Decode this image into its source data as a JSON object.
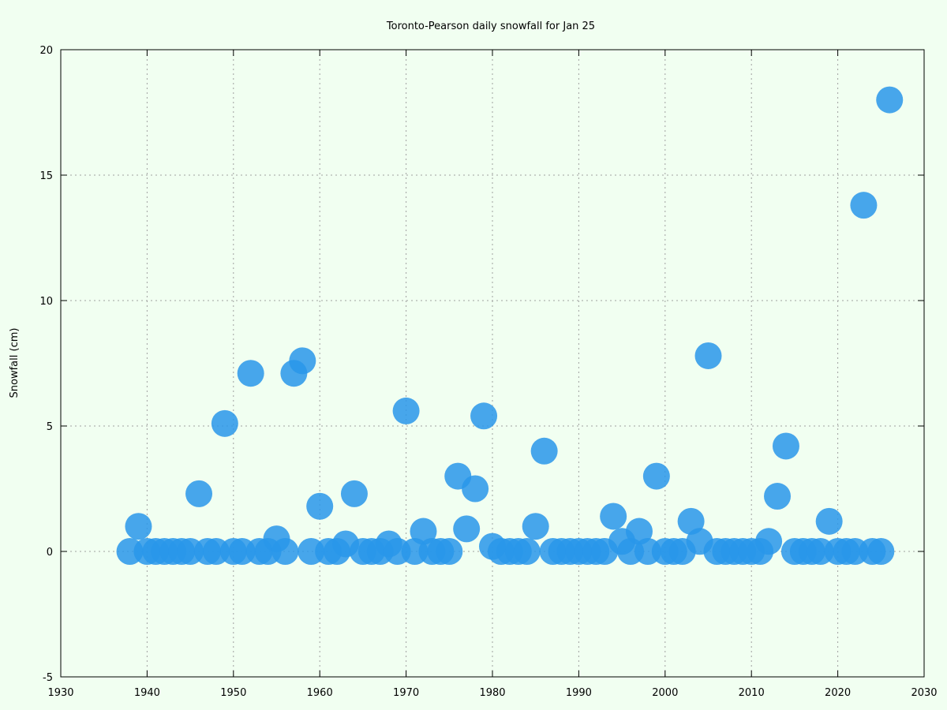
{
  "chart_data": {
    "type": "scatter",
    "title": "Toronto-Pearson daily snowfall for Jan 25",
    "xlabel": "",
    "ylabel": "Snowfall (cm)",
    "xlim": [
      1930,
      2030
    ],
    "ylim": [
      -5,
      20
    ],
    "xticks": [
      1930,
      1940,
      1950,
      1960,
      1970,
      1980,
      1990,
      2000,
      2010,
      2020,
      2030
    ],
    "yticks": [
      -5,
      0,
      5,
      10,
      15,
      20
    ],
    "grid": true,
    "series": [
      {
        "color": "#2997ea",
        "points": [
          [
            1938,
            0
          ],
          [
            1939,
            1.0
          ],
          [
            1940,
            0
          ],
          [
            1941,
            0
          ],
          [
            1942,
            0
          ],
          [
            1943,
            0
          ],
          [
            1944,
            0
          ],
          [
            1945,
            0
          ],
          [
            1946,
            2.3
          ],
          [
            1947,
            0
          ],
          [
            1948,
            0
          ],
          [
            1949,
            5.1
          ],
          [
            1950,
            0
          ],
          [
            1951,
            0
          ],
          [
            1952,
            7.1
          ],
          [
            1953,
            0
          ],
          [
            1954,
            0
          ],
          [
            1955,
            0.5
          ],
          [
            1956,
            0
          ],
          [
            1957,
            7.1
          ],
          [
            1958,
            7.6
          ],
          [
            1959,
            0
          ],
          [
            1960,
            1.8
          ],
          [
            1961,
            0
          ],
          [
            1962,
            0
          ],
          [
            1963,
            0.3
          ],
          [
            1964,
            2.3
          ],
          [
            1965,
            0
          ],
          [
            1966,
            0
          ],
          [
            1967,
            0
          ],
          [
            1968,
            0.3
          ],
          [
            1969,
            0
          ],
          [
            1970,
            5.6
          ],
          [
            1971,
            0
          ],
          [
            1972,
            0.8
          ],
          [
            1973,
            0
          ],
          [
            1974,
            0
          ],
          [
            1975,
            0
          ],
          [
            1976,
            3.0
          ],
          [
            1977,
            0.9
          ],
          [
            1978,
            2.5
          ],
          [
            1979,
            5.4
          ],
          [
            1980,
            0.2
          ],
          [
            1981,
            0
          ],
          [
            1982,
            0
          ],
          [
            1983,
            0
          ],
          [
            1984,
            0
          ],
          [
            1985,
            1.0
          ],
          [
            1986,
            4.0
          ],
          [
            1987,
            0
          ],
          [
            1988,
            0
          ],
          [
            1989,
            0
          ],
          [
            1990,
            0
          ],
          [
            1991,
            0
          ],
          [
            1992,
            0
          ],
          [
            1993,
            0
          ],
          [
            1994,
            1.4
          ],
          [
            1995,
            0.4
          ],
          [
            1996,
            0
          ],
          [
            1997,
            0.8
          ],
          [
            1998,
            0
          ],
          [
            1999,
            3.0
          ],
          [
            2000,
            0
          ],
          [
            2001,
            0
          ],
          [
            2002,
            0
          ],
          [
            2003,
            1.2
          ],
          [
            2004,
            0.4
          ],
          [
            2005,
            7.8
          ],
          [
            2006,
            0
          ],
          [
            2007,
            0
          ],
          [
            2008,
            0
          ],
          [
            2009,
            0
          ],
          [
            2010,
            0
          ],
          [
            2011,
            0
          ],
          [
            2012,
            0.4
          ],
          [
            2013,
            2.2
          ],
          [
            2014,
            4.2
          ],
          [
            2015,
            0
          ],
          [
            2016,
            0
          ],
          [
            2017,
            0
          ],
          [
            2018,
            0
          ],
          [
            2019,
            1.2
          ],
          [
            2020,
            0
          ],
          [
            2021,
            0
          ],
          [
            2022,
            0
          ],
          [
            2023,
            13.8
          ],
          [
            2024,
            0
          ],
          [
            2025,
            0
          ],
          [
            2026,
            18.0
          ]
        ]
      }
    ]
  }
}
